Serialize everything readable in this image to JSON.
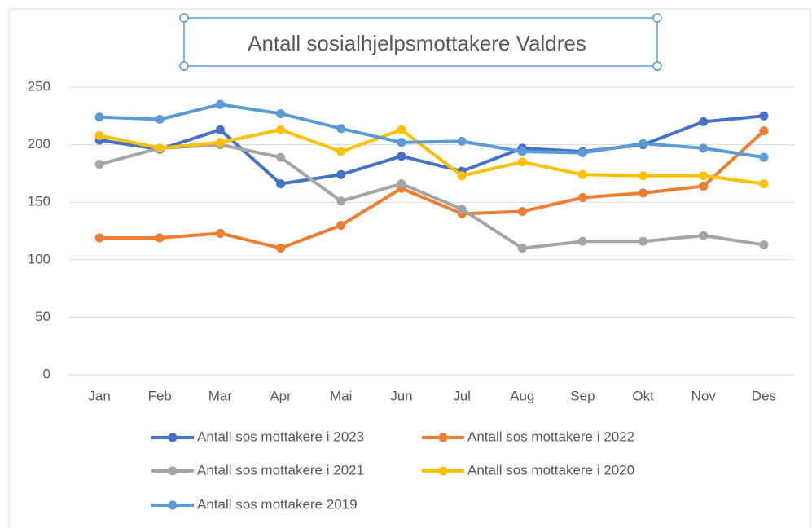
{
  "chart_data": {
    "type": "line",
    "title": "Antall sosialhjelpsmottakere Valdres",
    "categories": [
      "Jan",
      "Feb",
      "Mar",
      "Apr",
      "Mai",
      "Jun",
      "Jul",
      "Aug",
      "Sep",
      "Okt",
      "Nov",
      "Des"
    ],
    "series": [
      {
        "name": "Antall sos mottakere i 2023",
        "color": "#4472c4",
        "values": [
          204,
          196,
          213,
          166,
          174,
          190,
          177,
          197,
          194,
          200,
          220,
          225
        ]
      },
      {
        "name": "Antall sos mottakere i 2022",
        "color": "#ed7d31",
        "values": [
          119,
          119,
          123,
          110,
          130,
          162,
          140,
          142,
          154,
          158,
          164,
          212
        ]
      },
      {
        "name": "Antall sos mottakere i 2021",
        "color": "#a5a5a5",
        "values": [
          183,
          197,
          200,
          189,
          151,
          166,
          144,
          110,
          116,
          116,
          121,
          113
        ]
      },
      {
        "name": "Antall sos mottakere i 2020",
        "color": "#ffc000",
        "values": [
          208,
          197,
          202,
          213,
          194,
          213,
          173,
          185,
          174,
          173,
          173,
          166
        ]
      },
      {
        "name": "Antall sos mottakere 2019",
        "color": "#5b9bd5",
        "values": [
          224,
          222,
          235,
          227,
          214,
          202,
          203,
          194,
          193,
          201,
          197,
          189
        ]
      }
    ],
    "ylim": [
      0,
      250
    ],
    "yticks": [
      0,
      50,
      100,
      150,
      200,
      250
    ],
    "grid": true,
    "legend": "bottom"
  }
}
